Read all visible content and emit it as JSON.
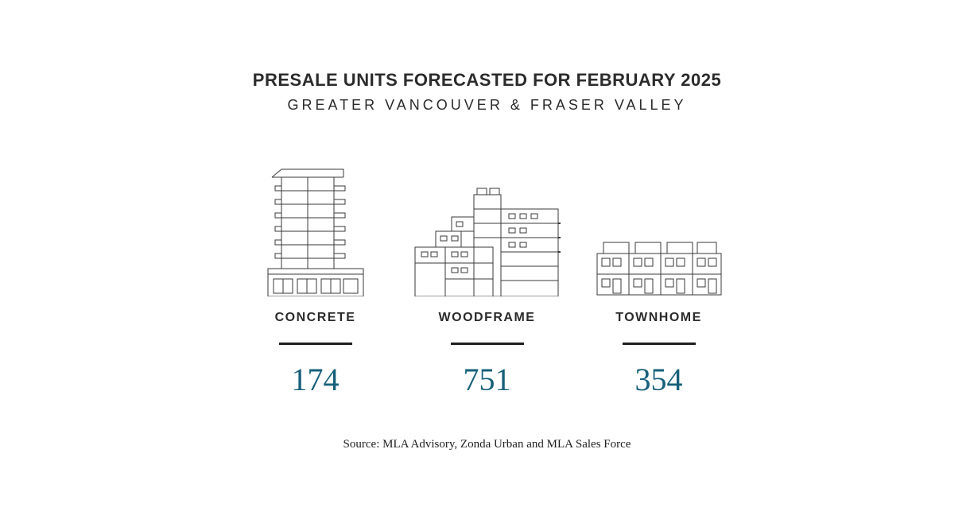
{
  "title": "PRESALE UNITS FORECASTED FOR FEBRUARY 2025",
  "subtitle": "GREATER VANCOUVER & FRASER VALLEY",
  "title_fontsize": 22,
  "subtitle_fontsize": 18,
  "heading_color": "#2b2b2b",
  "categories": [
    {
      "label": "CONCRETE",
      "value": 174,
      "divider_width": 92
    },
    {
      "label": "WOODFRAME",
      "value": 751,
      "divider_width": 92
    },
    {
      "label": "TOWNHOME",
      "value": 354,
      "divider_width": 92
    }
  ],
  "label_fontsize": 16,
  "label_color": "#2b2b2b",
  "divider_color": "#1f1f1f",
  "value_fontsize": 40,
  "value_color": "#17607a",
  "illustration_stroke": "#3a3a3a",
  "illustration_stroke_width": 1,
  "source": "Source: MLA Advisory, Zonda Urban and MLA Sales Force",
  "source_fontsize": 15,
  "source_color": "#1f1f1f",
  "background_color": "#ffffff"
}
